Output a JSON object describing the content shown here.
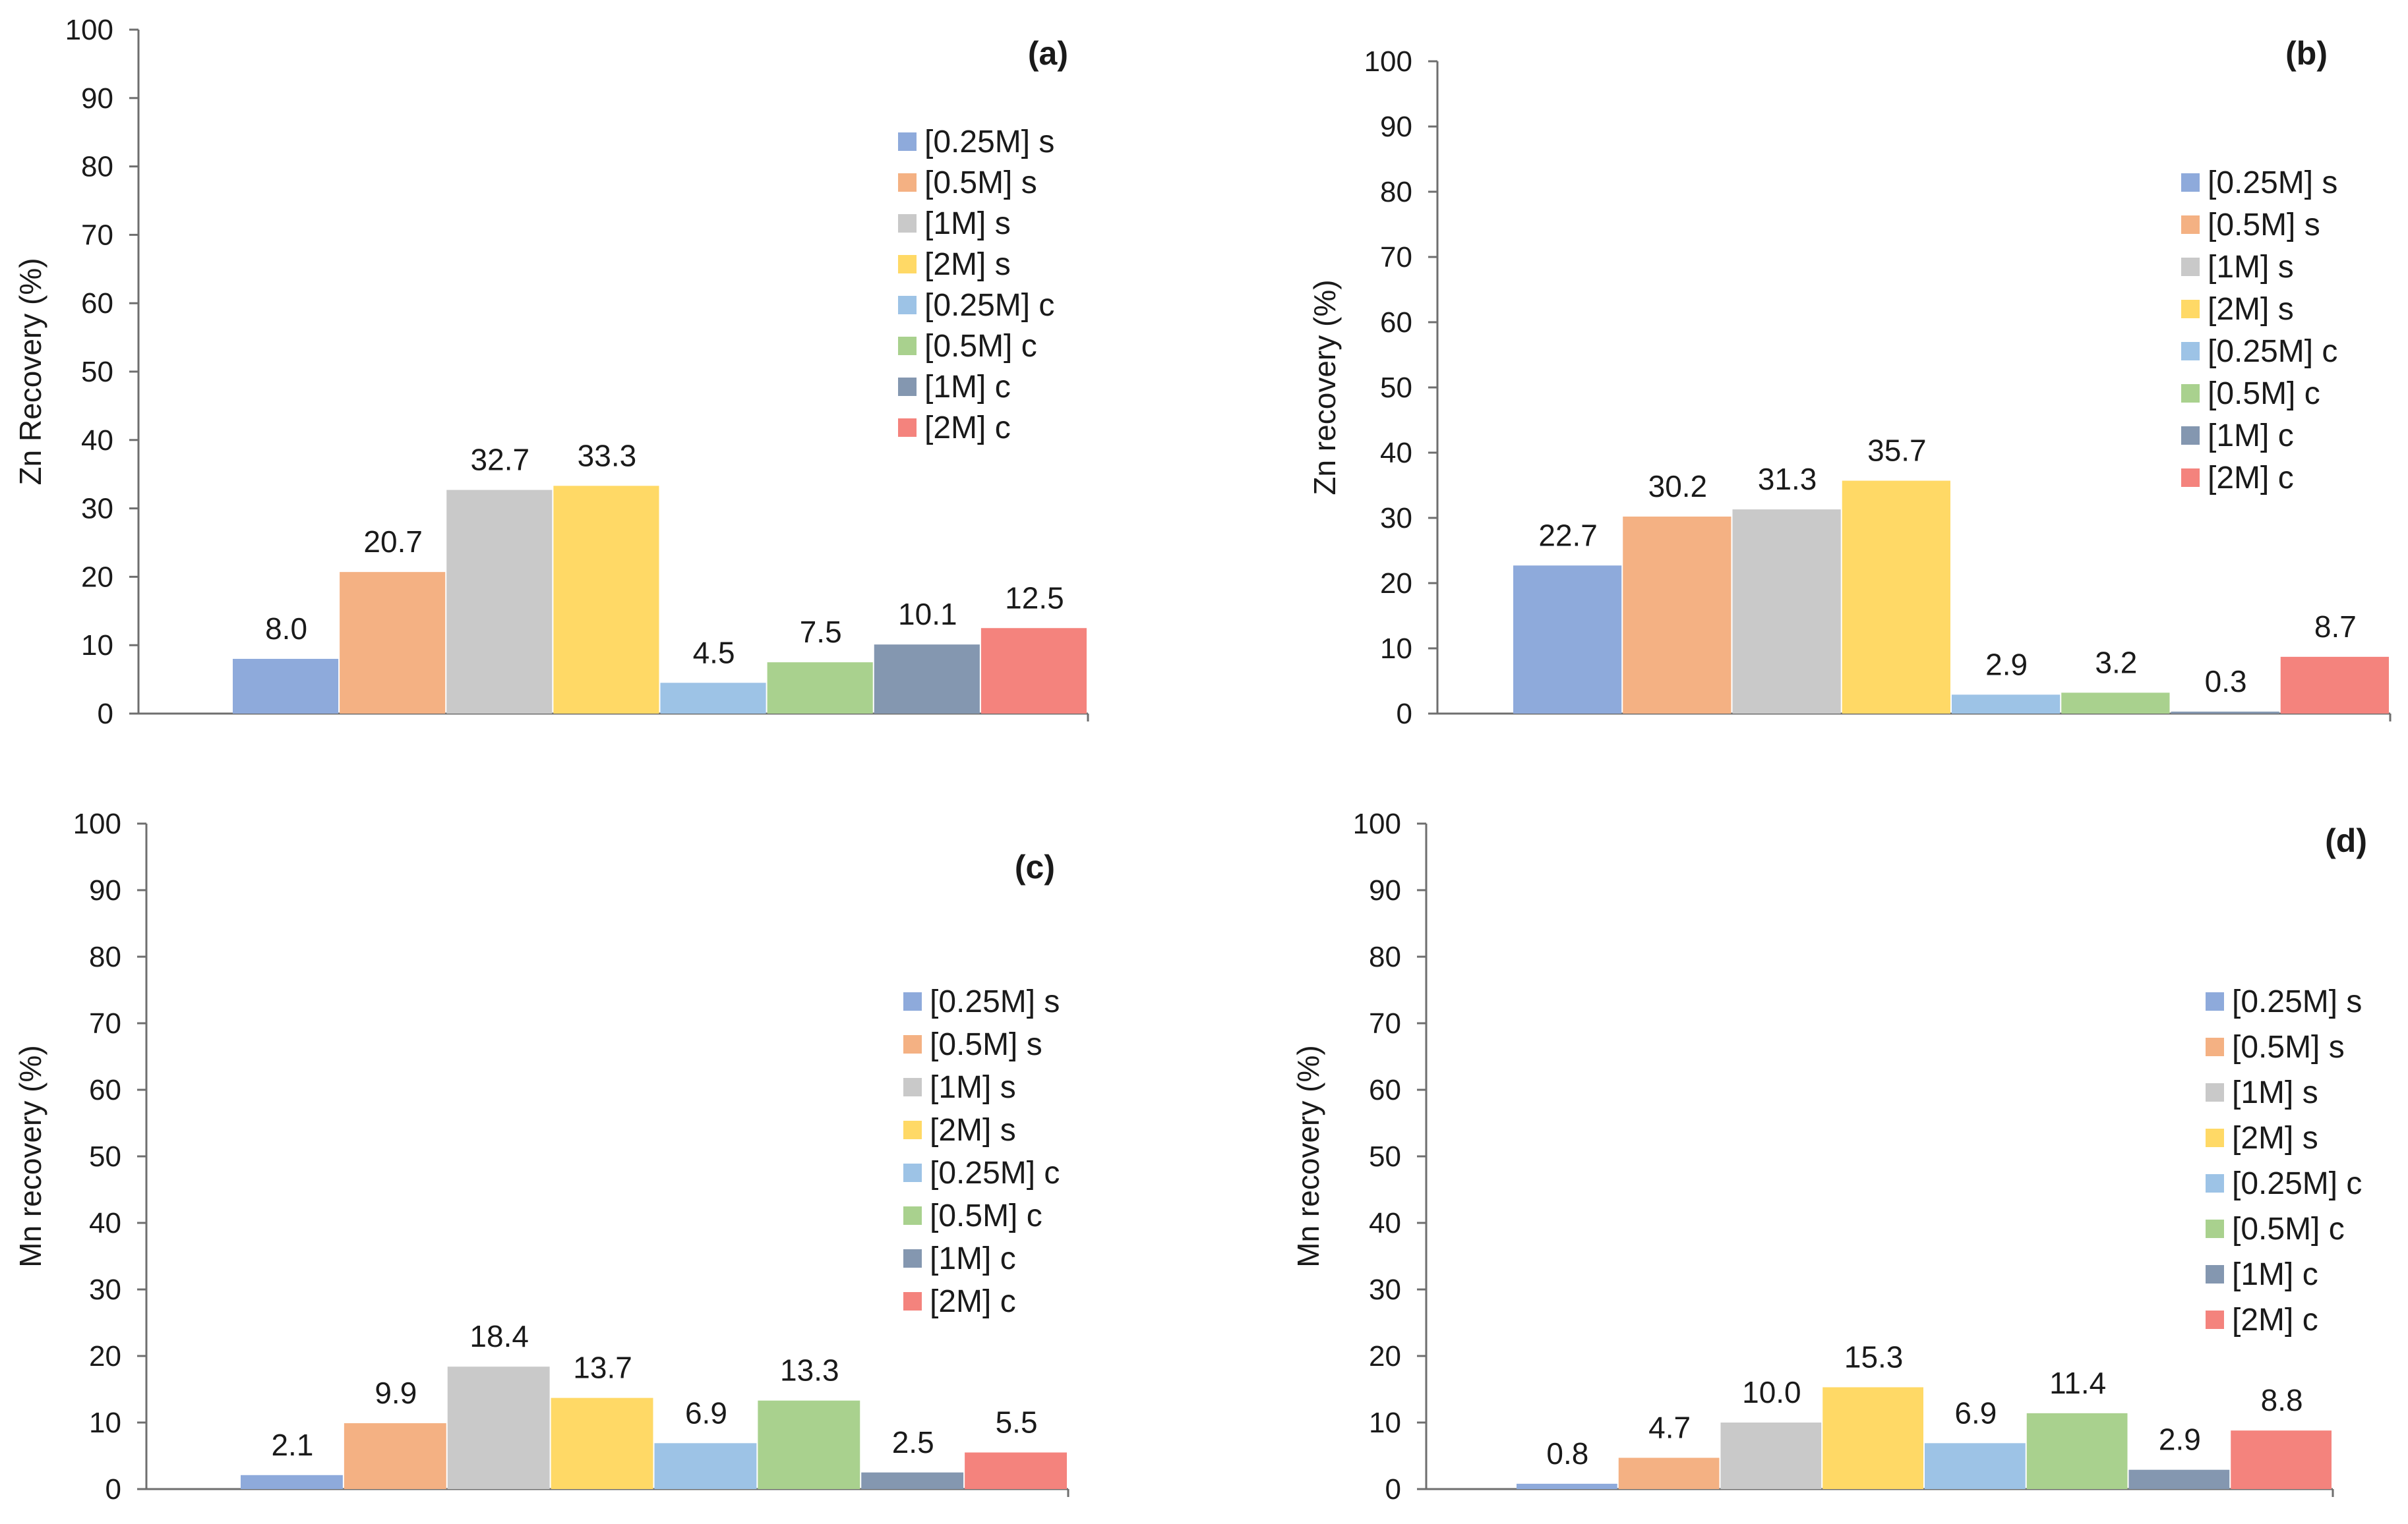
{
  "colors": [
    "#8eaadb",
    "#f4b183",
    "#c9c9c9",
    "#ffd966",
    "#9dc3e6",
    "#a9d18e",
    "#8497b0",
    "#f4837d"
  ],
  "chart_data": [
    {
      "type": "bar",
      "panel_label": "(a)",
      "ylabel": "Zn Recovery (%)",
      "ylim": [
        0,
        100
      ],
      "yticks": [
        "0",
        "10",
        "20",
        "30",
        "40",
        "50",
        "60",
        "70",
        "80",
        "90",
        "100"
      ],
      "series": [
        {
          "name": " [0.25M] s",
          "value": 8.0,
          "label": "8.0"
        },
        {
          "name": "[0.5M] s",
          "value": 20.7,
          "label": "20.7"
        },
        {
          "name": "[1M] s",
          "value": 32.7,
          "label": "32.7"
        },
        {
          "name": "[2M] s",
          "value": 33.3,
          "label": "33.3"
        },
        {
          "name": "[0.25M] c",
          "value": 4.5,
          "label": "4.5"
        },
        {
          "name": "[0.5M] c",
          "value": 7.5,
          "label": "7.5"
        },
        {
          "name": "[1M] c",
          "value": 10.1,
          "label": "10.1"
        },
        {
          "name": "[2M] c",
          "value": 12.5,
          "label": "12.5"
        }
      ]
    },
    {
      "type": "bar",
      "panel_label": "(b)",
      "ylabel": "Zn recovery (%)",
      "ylim": [
        0,
        100
      ],
      "yticks": [
        "0",
        "10",
        "20",
        "30",
        "40",
        "50",
        "60",
        "70",
        "80",
        "90",
        "100"
      ],
      "series": [
        {
          "name": " [0.25M] s",
          "value": 22.7,
          "label": "22.7"
        },
        {
          "name": "[0.5M] s",
          "value": 30.2,
          "label": "30.2"
        },
        {
          "name": "[1M] s",
          "value": 31.3,
          "label": "31.3"
        },
        {
          "name": "[2M] s",
          "value": 35.7,
          "label": "35.7"
        },
        {
          "name": "[0.25M] c",
          "value": 2.9,
          "label": "2.9"
        },
        {
          "name": "[0.5M] c",
          "value": 3.2,
          "label": "3.2"
        },
        {
          "name": "[1M] c",
          "value": 0.3,
          "label": "0.3"
        },
        {
          "name": "[2M] c",
          "value": 8.7,
          "label": "8.7"
        }
      ]
    },
    {
      "type": "bar",
      "panel_label": "(c)",
      "ylabel": "Mn recovery (%)",
      "ylim": [
        0,
        100
      ],
      "yticks": [
        "0",
        "10",
        "20",
        "30",
        "40",
        "50",
        "60",
        "70",
        "80",
        "90",
        "100"
      ],
      "series": [
        {
          "name": " [0.25M] s",
          "value": 2.1,
          "label": "2.1"
        },
        {
          "name": "[0.5M] s",
          "value": 9.9,
          "label": "9.9"
        },
        {
          "name": "[1M] s",
          "value": 18.4,
          "label": "18.4"
        },
        {
          "name": "[2M] s",
          "value": 13.7,
          "label": "13.7"
        },
        {
          "name": "[0.25M] c",
          "value": 6.9,
          "label": "6.9"
        },
        {
          "name": "[0.5M] c",
          "value": 13.3,
          "label": "13.3"
        },
        {
          "name": "[1M] c",
          "value": 2.5,
          "label": "2.5"
        },
        {
          "name": "[2M] c",
          "value": 5.5,
          "label": "5.5"
        }
      ]
    },
    {
      "type": "bar",
      "panel_label": "(d)",
      "ylabel": "Mn recovery (%)",
      "ylim": [
        0,
        100
      ],
      "yticks": [
        "0",
        "10",
        "20",
        "30",
        "40",
        "50",
        "60",
        "70",
        "80",
        "90",
        "100"
      ],
      "series": [
        {
          "name": " [0.25M] s",
          "value": 0.8,
          "label": "0.8"
        },
        {
          "name": "[0.5M] s",
          "value": 4.7,
          "label": "4.7"
        },
        {
          "name": "[1M] s",
          "value": 10.0,
          "label": "10.0"
        },
        {
          "name": "[2M] s",
          "value": 15.3,
          "label": "15.3"
        },
        {
          "name": "[0.25M] c",
          "value": 6.9,
          "label": "6.9"
        },
        {
          "name": "[0.5M] c",
          "value": 11.4,
          "label": "11.4"
        },
        {
          "name": "[1M] c",
          "value": 2.9,
          "label": "2.9"
        },
        {
          "name": "[2M] c",
          "value": 8.8,
          "label": "8.8"
        }
      ]
    }
  ]
}
